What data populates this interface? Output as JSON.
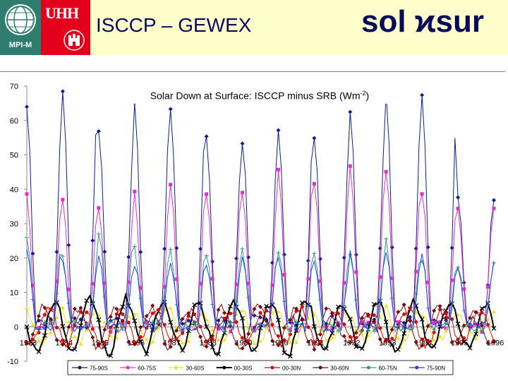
{
  "header": {
    "mpi_label": "MPI-M",
    "uhh_label": "UHH",
    "title": "ISCCP – GEWEX",
    "brand": "sol ϰsur"
  },
  "chart_data": {
    "type": "line",
    "title": "Solar Down at Surface: ISCCP minus SRB (Wm-2)",
    "title_main": "Solar Down at Surface: ISCCP minus SRB (Wm",
    "title_sup": "-2",
    "title_end": ")",
    "xlabel": "",
    "ylabel": "",
    "ylim": [
      -10,
      70
    ],
    "yticks": [
      -10,
      0,
      10,
      20,
      30,
      40,
      50,
      60,
      70
    ],
    "xlim": [
      1983,
      1996
    ],
    "xticks": [
      "1983",
      "1984",
      "1985",
      "1986",
      "1987",
      "1988",
      "1989",
      "1990",
      "1991",
      "1992",
      "1993",
      "1994",
      "1995",
      "1996"
    ],
    "grid": false,
    "legend_placement": "bottom",
    "series": [
      {
        "name": "75-90S",
        "color": "#0a1f8f",
        "marker": "diamond",
        "amplitude": "seasonal-high",
        "annual_peaks": [
          62,
          66,
          56,
          63,
          61,
          52,
          52,
          56,
          53,
          60,
          66,
          65,
          35
        ]
      },
      {
        "name": "60-75S",
        "color": "#ee2cc4",
        "marker": "square",
        "amplitude": "seasonal-mid",
        "annual_peaks": [
          38,
          36,
          35,
          38,
          42,
          40,
          38,
          46,
          42,
          47,
          46,
          39,
          34
        ]
      },
      {
        "name": "30-60S",
        "color": "#f0e020",
        "marker": "triangle",
        "amplitude": "seasonal-low",
        "annual_peaks": [
          5,
          5,
          4,
          5,
          5,
          4,
          6,
          5,
          5,
          4,
          6,
          5,
          4
        ]
      },
      {
        "name": "00-30S",
        "color": "#000000",
        "marker": "x",
        "amplitude": "seasonal-low",
        "annual_peaks": [
          8,
          9,
          9,
          8,
          7,
          8,
          8,
          9,
          8,
          8,
          9,
          8,
          7
        ]
      },
      {
        "name": "00-30N",
        "color": "#e00000",
        "marker": "circle",
        "amplitude": "seasonal-low",
        "annual_peaks": [
          6,
          5,
          6,
          5,
          5,
          5,
          5,
          6,
          5,
          5,
          5,
          6,
          5
        ]
      },
      {
        "name": "30-60N",
        "color": "#7a0a0a",
        "marker": "diamond",
        "amplitude": "seasonal-low",
        "annual_peaks": [
          6,
          6,
          5,
          6,
          5,
          6,
          6,
          5,
          6,
          5,
          6,
          6,
          5
        ]
      },
      {
        "name": "60-75N",
        "color": "#2a9d8f",
        "marker": "plus",
        "amplitude": "seasonal-mid",
        "annual_peaks": [
          25,
          20,
          27,
          22,
          22,
          21,
          22,
          22,
          20,
          22,
          25,
          20,
          18
        ]
      },
      {
        "name": "75-90N",
        "color": "#1e3cff",
        "marker": "dash",
        "amplitude": "seasonal-mid",
        "annual_peaks": [
          24,
          18,
          20,
          18,
          19,
          18,
          21,
          20,
          18,
          21,
          22,
          20,
          18
        ]
      }
    ]
  }
}
